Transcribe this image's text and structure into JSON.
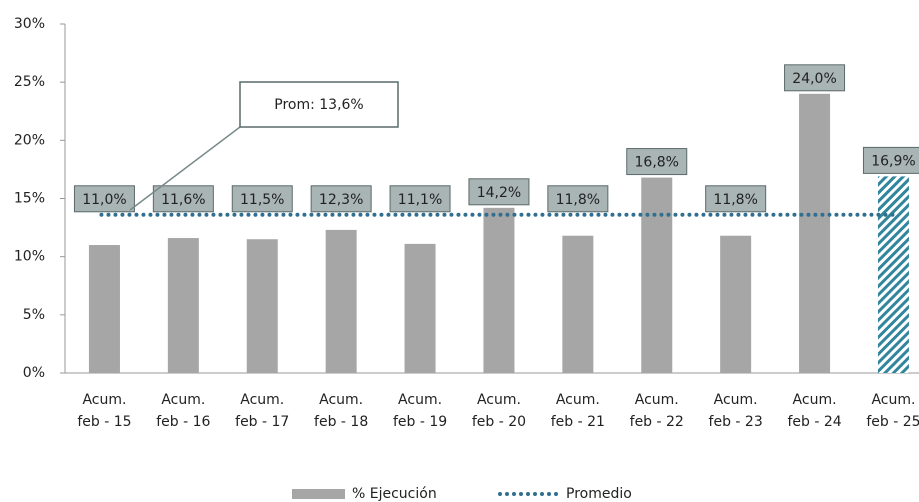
{
  "chart_data": {
    "type": "bar",
    "categories": [
      [
        "Acum.",
        "feb - 15"
      ],
      [
        "Acum.",
        "feb - 16"
      ],
      [
        "Acum.",
        "feb - 17"
      ],
      [
        "Acum.",
        "feb - 18"
      ],
      [
        "Acum.",
        "feb - 19"
      ],
      [
        "Acum.",
        "feb - 20"
      ],
      [
        "Acum.",
        "feb - 21"
      ],
      [
        "Acum.",
        "feb - 22"
      ],
      [
        "Acum.",
        "feb - 23"
      ],
      [
        "Acum.",
        "feb - 24"
      ],
      [
        "Acum.",
        "feb - 25"
      ]
    ],
    "series": [
      {
        "name": "% Ejecución",
        "color": "#a6a6a6",
        "highlight_color": "#31859c",
        "values": [
          11.0,
          11.6,
          11.5,
          12.3,
          11.1,
          14.2,
          11.8,
          16.8,
          11.8,
          24.0,
          16.9
        ],
        "value_labels": [
          "11,0%",
          "11,6%",
          "11,5%",
          "12,3%",
          "11,1%",
          "14,2%",
          "11,8%",
          "16,8%",
          "11,8%",
          "24,0%",
          "16,9%"
        ]
      },
      {
        "name": "Promedio",
        "color": "#2f6f8f",
        "values": [
          13.6,
          13.6,
          13.6,
          13.6,
          13.6,
          13.6,
          13.6,
          13.6,
          13.6,
          13.6,
          13.6
        ]
      }
    ],
    "annotation": "Prom: 13,6%",
    "ylim": [
      0,
      30
    ],
    "yticks": [
      {
        "value": 0,
        "label": "0%"
      },
      {
        "value": 5,
        "label": "5%"
      },
      {
        "value": 10,
        "label": "10%"
      },
      {
        "value": 15,
        "label": "15%"
      },
      {
        "value": 20,
        "label": "20%"
      },
      {
        "value": 25,
        "label": "25%"
      },
      {
        "value": 30,
        "label": "30%"
      }
    ],
    "grid": false
  }
}
